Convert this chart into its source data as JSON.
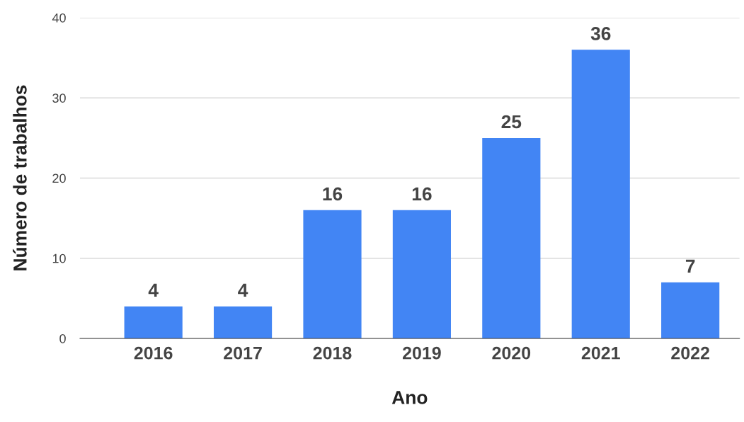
{
  "chart_data": {
    "type": "bar",
    "xlabel": "Ano",
    "ylabel": "Número de trabalhos",
    "categories": [
      "2016",
      "2017",
      "2018",
      "2019",
      "2020",
      "2021",
      "2022"
    ],
    "values": [
      4,
      4,
      16,
      16,
      25,
      36,
      7
    ],
    "color": "#4285f4",
    "ylim": [
      0,
      40
    ],
    "yticks": [
      0,
      10,
      20,
      30,
      40
    ],
    "grid": "y",
    "data_labels": true,
    "legend": false
  }
}
